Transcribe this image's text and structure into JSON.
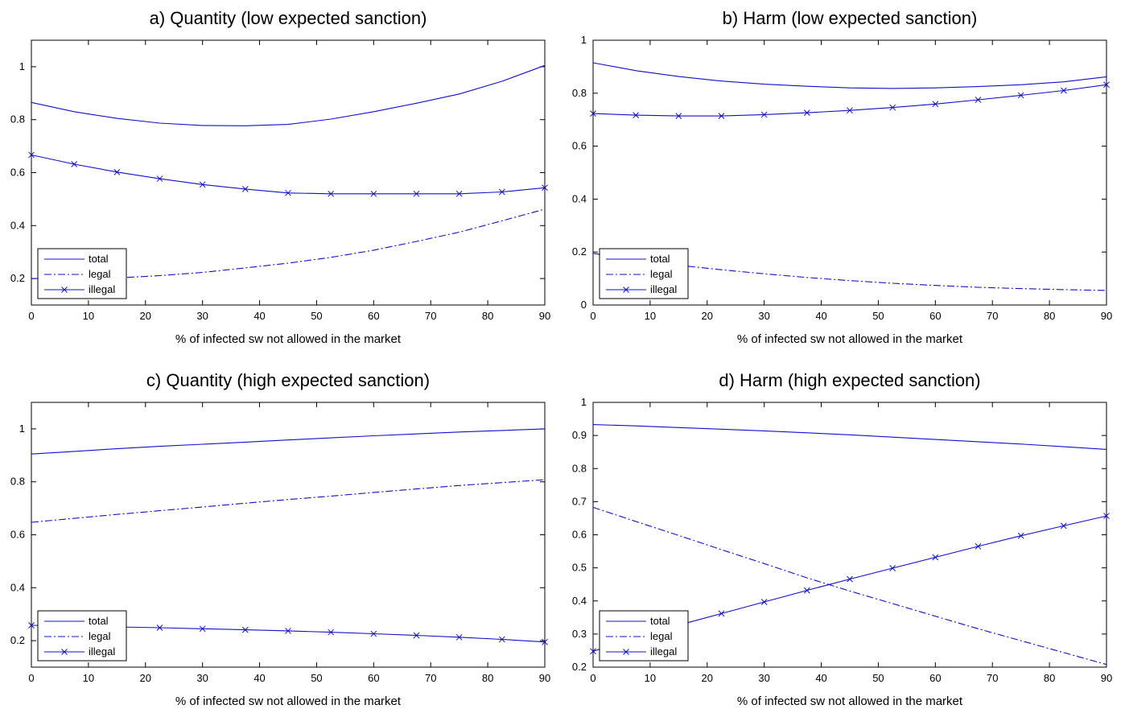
{
  "colors": {
    "series": "#1010cc",
    "axis": "#000000",
    "background": "#ffffff"
  },
  "chart_data": [
    {
      "type": "line",
      "title": "a) Quantity (low expected sanction)",
      "xlabel": "% of infected sw not allowed in the market",
      "ylabel": "",
      "xlim": [
        0,
        90
      ],
      "ylim": [
        0.1,
        1.1
      ],
      "xticks": [
        0,
        10,
        20,
        30,
        40,
        50,
        60,
        70,
        80,
        90
      ],
      "yticks": [
        0.2,
        0.4,
        0.6,
        0.8,
        1
      ],
      "legend": "bottom-left",
      "grid": false,
      "series": [
        {
          "name": "total",
          "style": "solid",
          "x": [
            0,
            7.5,
            15,
            22.5,
            30,
            37.5,
            45,
            52.5,
            60,
            67.5,
            75,
            82.5,
            90
          ],
          "y": [
            0.865,
            0.83,
            0.805,
            0.787,
            0.778,
            0.777,
            0.782,
            0.802,
            0.83,
            0.862,
            0.897,
            0.945,
            1.005
          ]
        },
        {
          "name": "legal",
          "style": "dashdot",
          "x": [
            0,
            7.5,
            15,
            22.5,
            30,
            37.5,
            45,
            52.5,
            60,
            67.5,
            75,
            82.5,
            90
          ],
          "y": [
            0.2,
            0.2,
            0.202,
            0.211,
            0.223,
            0.24,
            0.258,
            0.28,
            0.307,
            0.34,
            0.375,
            0.418,
            0.462
          ]
        },
        {
          "name": "illegal",
          "style": "solid-x",
          "x": [
            0,
            7.5,
            15,
            22.5,
            30,
            37.5,
            45,
            52.5,
            60,
            67.5,
            75,
            82.5,
            90
          ],
          "y": [
            0.667,
            0.632,
            0.602,
            0.577,
            0.555,
            0.538,
            0.523,
            0.52,
            0.52,
            0.52,
            0.52,
            0.527,
            0.543
          ]
        }
      ]
    },
    {
      "type": "line",
      "title": "b) Harm (low expected sanction)",
      "xlabel": "% of infected sw not allowed in the market",
      "ylabel": "",
      "xlim": [
        0,
        90
      ],
      "ylim": [
        0,
        1
      ],
      "xticks": [
        0,
        10,
        20,
        30,
        40,
        50,
        60,
        70,
        80,
        90
      ],
      "yticks": [
        0,
        0.2,
        0.4,
        0.6,
        0.8,
        1
      ],
      "legend": "bottom-left",
      "grid": false,
      "series": [
        {
          "name": "total",
          "style": "solid",
          "x": [
            0,
            7.5,
            15,
            22.5,
            30,
            37.5,
            45,
            52.5,
            60,
            67.5,
            75,
            82.5,
            90
          ],
          "y": [
            0.915,
            0.885,
            0.863,
            0.846,
            0.834,
            0.826,
            0.82,
            0.818,
            0.82,
            0.825,
            0.832,
            0.843,
            0.862
          ]
        },
        {
          "name": "legal",
          "style": "dashdot",
          "x": [
            0,
            7.5,
            15,
            22.5,
            30,
            37.5,
            45,
            52.5,
            60,
            67.5,
            75,
            82.5,
            90
          ],
          "y": [
            0.195,
            0.17,
            0.15,
            0.133,
            0.118,
            0.104,
            0.092,
            0.082,
            0.074,
            0.067,
            0.062,
            0.058,
            0.055
          ]
        },
        {
          "name": "illegal",
          "style": "solid-x",
          "x": [
            0,
            7.5,
            15,
            22.5,
            30,
            37.5,
            45,
            52.5,
            60,
            67.5,
            75,
            82.5,
            90
          ],
          "y": [
            0.723,
            0.717,
            0.714,
            0.714,
            0.719,
            0.726,
            0.735,
            0.746,
            0.759,
            0.775,
            0.792,
            0.81,
            0.832
          ]
        }
      ]
    },
    {
      "type": "line",
      "title": "c) Quantity (high expected sanction)",
      "xlabel": "% of infected sw not allowed in the market",
      "ylabel": "",
      "xlim": [
        0,
        90
      ],
      "ylim": [
        0.1,
        1.1
      ],
      "xticks": [
        0,
        10,
        20,
        30,
        40,
        50,
        60,
        70,
        80,
        90
      ],
      "yticks": [
        0.2,
        0.4,
        0.6,
        0.8,
        1
      ],
      "legend": "bottom-left",
      "grid": false,
      "series": [
        {
          "name": "total",
          "style": "solid",
          "x": [
            0,
            7.5,
            15,
            22.5,
            30,
            37.5,
            45,
            52.5,
            60,
            67.5,
            75,
            82.5,
            90
          ],
          "y": [
            0.905,
            0.915,
            0.925,
            0.934,
            0.942,
            0.95,
            0.958,
            0.966,
            0.974,
            0.981,
            0.988,
            0.994,
            1.0
          ]
        },
        {
          "name": "legal",
          "style": "dashdot",
          "x": [
            0,
            7.5,
            15,
            22.5,
            30,
            37.5,
            45,
            52.5,
            60,
            67.5,
            75,
            82.5,
            90
          ],
          "y": [
            0.647,
            0.662,
            0.677,
            0.691,
            0.705,
            0.719,
            0.733,
            0.746,
            0.76,
            0.773,
            0.786,
            0.797,
            0.808
          ]
        },
        {
          "name": "illegal",
          "style": "solid-x",
          "x": [
            0,
            7.5,
            15,
            22.5,
            30,
            37.5,
            45,
            52.5,
            60,
            67.5,
            75,
            82.5,
            90
          ],
          "y": [
            0.258,
            0.255,
            0.252,
            0.249,
            0.245,
            0.241,
            0.237,
            0.232,
            0.226,
            0.22,
            0.213,
            0.205,
            0.195
          ]
        }
      ]
    },
    {
      "type": "line",
      "title": "d) Harm (high expected sanction)",
      "xlabel": "% of infected sw not allowed in the market",
      "ylabel": "",
      "xlim": [
        0,
        90
      ],
      "ylim": [
        0.2,
        1
      ],
      "xticks": [
        0,
        10,
        20,
        30,
        40,
        50,
        60,
        70,
        80,
        90
      ],
      "yticks": [
        0.2,
        0.3,
        0.4,
        0.5,
        0.6,
        0.7,
        0.8,
        0.9,
        1
      ],
      "legend": "bottom-left",
      "grid": false,
      "series": [
        {
          "name": "total",
          "style": "solid",
          "x": [
            0,
            7.5,
            15,
            22.5,
            30,
            37.5,
            45,
            52.5,
            60,
            67.5,
            75,
            82.5,
            90
          ],
          "y": [
            0.933,
            0.929,
            0.924,
            0.919,
            0.914,
            0.908,
            0.902,
            0.895,
            0.888,
            0.881,
            0.874,
            0.866,
            0.858
          ]
        },
        {
          "name": "legal",
          "style": "dashdot",
          "x": [
            0,
            7.5,
            15,
            22.5,
            30,
            37.5,
            45,
            52.5,
            60,
            67.5,
            75,
            82.5,
            90
          ],
          "y": [
            0.683,
            0.64,
            0.598,
            0.555,
            0.513,
            0.47,
            0.43,
            0.392,
            0.354,
            0.316,
            0.28,
            0.244,
            0.208
          ]
        },
        {
          "name": "illegal",
          "style": "solid-x",
          "x": [
            0,
            7.5,
            15,
            22.5,
            30,
            37.5,
            45,
            52.5,
            60,
            67.5,
            75,
            82.5,
            90
          ],
          "y": [
            0.248,
            0.29,
            0.327,
            0.362,
            0.397,
            0.432,
            0.466,
            0.499,
            0.532,
            0.565,
            0.597,
            0.627,
            0.657
          ]
        }
      ]
    }
  ]
}
